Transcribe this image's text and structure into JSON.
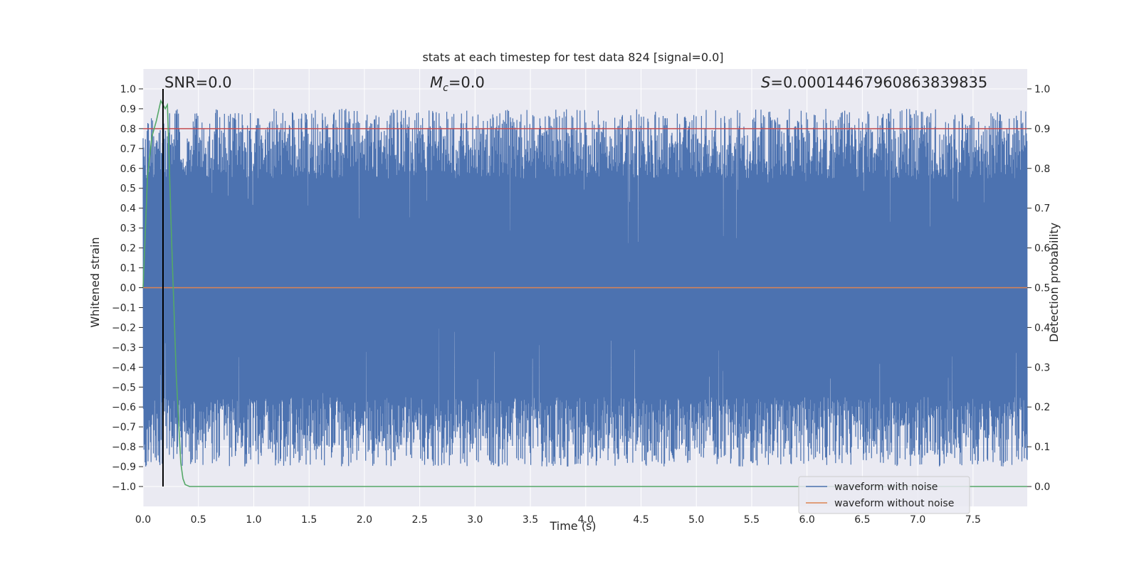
{
  "chart_data": {
    "type": "line",
    "title": "stats at each timestep for test data 824 [signal=0.0]",
    "xlabel": "Time (s)",
    "ylabel": "Whitened strain",
    "y2label": "Detection probability",
    "xlim": [
      0.0,
      7.99
    ],
    "ylim": [
      -1.1,
      1.1
    ],
    "y2lim": [
      -0.05,
      1.05
    ],
    "x_ticks": [
      0.0,
      0.5,
      1.0,
      1.5,
      2.0,
      2.5,
      3.0,
      3.5,
      4.0,
      4.5,
      5.0,
      5.5,
      6.0,
      6.5,
      7.0,
      7.5
    ],
    "x_tick_labels": [
      "0.0",
      "0.5",
      "1.0",
      "1.5",
      "2.0",
      "2.5",
      "3.0",
      "3.5",
      "4.0",
      "4.5",
      "5.0",
      "5.5",
      "6.0",
      "6.5",
      "7.0",
      "7.5"
    ],
    "y_ticks": [
      1.0,
      0.9,
      0.8,
      0.7,
      0.6,
      0.5,
      0.4,
      0.3,
      0.2,
      0.1,
      0.0,
      -0.1,
      -0.2,
      -0.3,
      -0.4,
      -0.5,
      -0.6,
      -0.7,
      -0.8,
      -0.9,
      -1.0
    ],
    "y_tick_labels": [
      "1.0",
      "0.9",
      "0.8",
      "0.7",
      "0.6",
      "0.5",
      "0.4",
      "0.3",
      "0.2",
      "0.1",
      "0.0",
      "−0.1",
      "−0.2",
      "−0.3",
      "−0.4",
      "−0.5",
      "−0.6",
      "−0.7",
      "−0.8",
      "−0.9",
      "−1.0"
    ],
    "y2_ticks": [
      1.0,
      0.9,
      0.8,
      0.7,
      0.6,
      0.5,
      0.4,
      0.3,
      0.2,
      0.1,
      0.0
    ],
    "y2_tick_labels": [
      "1.0",
      "0.9",
      "0.8",
      "0.7",
      "0.6",
      "0.5",
      "0.4",
      "0.3",
      "0.2",
      "0.1",
      "0.0"
    ],
    "grid": true,
    "legend_placement": "lower-right",
    "annotations": {
      "snr": "SNR=0.0",
      "mc_symbol": "M",
      "mc_sub": "c",
      "mc_value": "=0.0",
      "s_symbol": "S",
      "s_value": "=0.00014467960863839835"
    },
    "series": [
      {
        "name": "waveform with noise",
        "color": "#4c72b0",
        "axis": "left",
        "description_points": "dense noise filling roughly -0.95 to 0.95",
        "x": [
          0.0,
          7.99
        ],
        "upper_envelope": [
          0.9,
          0.9
        ],
        "lower_envelope": [
          -0.9,
          -0.9
        ]
      },
      {
        "name": "waveform without noise",
        "color": "#dd8452",
        "axis": "left",
        "x": [
          0.0,
          7.99
        ],
        "y": [
          0.0,
          0.0
        ]
      },
      {
        "color": "#55a868",
        "axis": "right",
        "x": [
          0.0,
          0.04,
          0.08,
          0.12,
          0.16,
          0.2,
          0.22,
          0.26,
          0.3,
          0.34,
          0.36,
          0.38,
          0.42,
          1.0,
          3.0,
          5.0,
          7.99
        ],
        "y": [
          0.5,
          0.78,
          0.88,
          0.92,
          0.97,
          0.95,
          0.96,
          0.6,
          0.28,
          0.06,
          0.02,
          0.005,
          0.0,
          0.0,
          0.0,
          0.0,
          0.0
        ]
      }
    ],
    "threshold_line": {
      "y2": 0.9,
      "color": "#c44e52"
    },
    "marker_line": {
      "x": 0.18,
      "color": "#000000"
    }
  }
}
